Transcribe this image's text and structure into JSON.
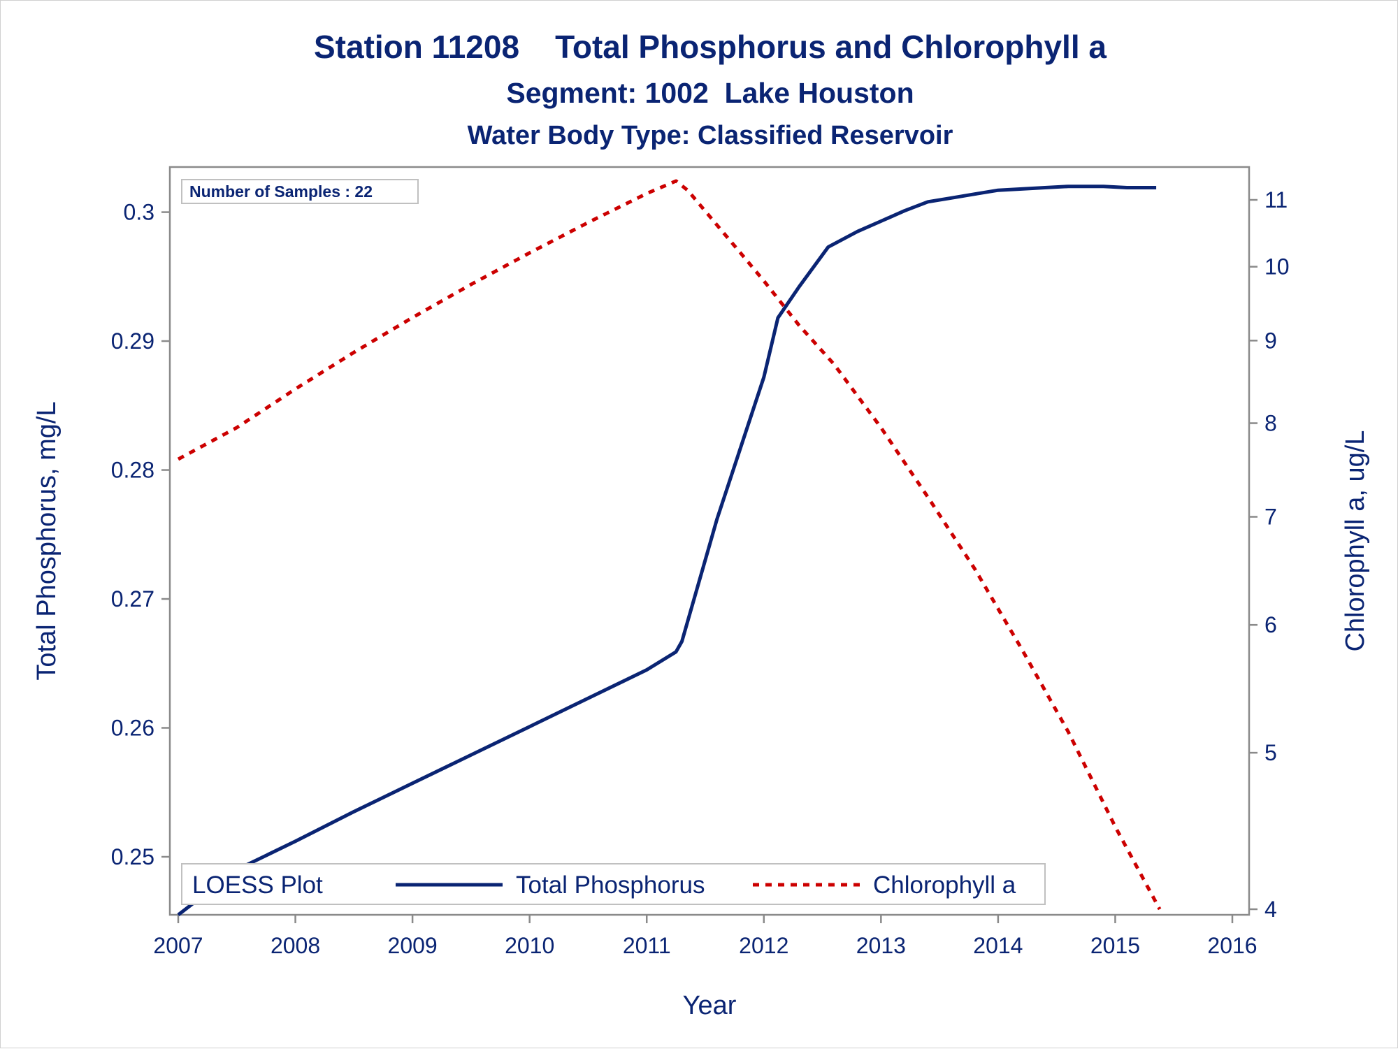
{
  "chart_data": {
    "type": "line",
    "title": "Station 11208    Total Phosphorus and Chlorophyll a",
    "subtitle": "Segment: 1002  Lake Houston",
    "subtitle2": "Water Body Type: Classified Reservoir",
    "xlabel": "Year",
    "ylabel_left": "Total Phosphorus, mg/L",
    "ylabel_right": "Chlorophyll a, ug/L",
    "xlim": [
      2007,
      2016
    ],
    "ylim_left": [
      0.2455,
      0.3035
    ],
    "ylim_right": [
      4,
      11.3
    ],
    "yscale_right": "log",
    "x_ticks": [
      "2007",
      "2008",
      "2009",
      "2010",
      "2011",
      "2012",
      "2013",
      "2014",
      "2015",
      "2016"
    ],
    "y_left_ticks": [
      "0.25",
      "0.26",
      "0.27",
      "0.28",
      "0.29",
      "0.3"
    ],
    "y_right_ticks": [
      "4",
      "5",
      "6",
      "7",
      "8",
      "9",
      "10",
      "11"
    ],
    "grid": false,
    "inset_label": "Number of Samples : 22",
    "legend": {
      "title": "LOESS Plot",
      "position": "bottom-inside",
      "entries": [
        "Total Phosphorus",
        "Chlorophyll a"
      ]
    },
    "series": [
      {
        "name": "Total Phosphorus",
        "axis": "left",
        "color": "#0a2473",
        "style": "solid",
        "x": [
          2007.0,
          2007.5,
          2008.0,
          2008.5,
          2009.0,
          2009.5,
          2010.0,
          2010.5,
          2011.0,
          2011.25,
          2011.3,
          2011.6,
          2012.0,
          2012.12,
          2012.3,
          2012.55,
          2012.8,
          2013.0,
          2013.2,
          2013.4,
          2013.6,
          2013.8,
          2014.0,
          2014.2,
          2014.4,
          2014.6,
          2014.75,
          2014.9,
          2015.1,
          2015.35
        ],
        "y": [
          0.2455,
          0.249,
          0.2512,
          0.2535,
          0.2557,
          0.2579,
          0.2601,
          0.2623,
          0.2645,
          0.2659,
          0.2667,
          0.2762,
          0.2872,
          0.2918,
          0.2942,
          0.2973,
          0.2985,
          0.2993,
          0.3001,
          0.3008,
          0.3011,
          0.3014,
          0.3017,
          0.3018,
          0.3019,
          0.302,
          0.302,
          0.302,
          0.3019,
          0.3019
        ]
      },
      {
        "name": "Chlorophyll a",
        "axis": "right",
        "color": "#cc0000",
        "style": "dashed",
        "x": [
          2007.0,
          2007.5,
          2008.0,
          2008.5,
          2009.0,
          2009.5,
          2010.0,
          2010.5,
          2011.0,
          2011.25,
          2011.35,
          2011.8,
          2012.0,
          2012.3,
          2012.6,
          2013.0,
          2013.4,
          2013.8,
          2014.2,
          2014.6,
          2015.0,
          2015.3,
          2015.38
        ],
        "y": [
          7.6,
          7.95,
          8.4,
          8.85,
          9.3,
          9.75,
          10.2,
          10.65,
          11.1,
          11.3,
          11.15,
          10.2,
          9.8,
          9.2,
          8.7,
          7.95,
          7.2,
          6.5,
          5.8,
          5.15,
          4.5,
          4.1,
          4.0
        ]
      }
    ]
  }
}
